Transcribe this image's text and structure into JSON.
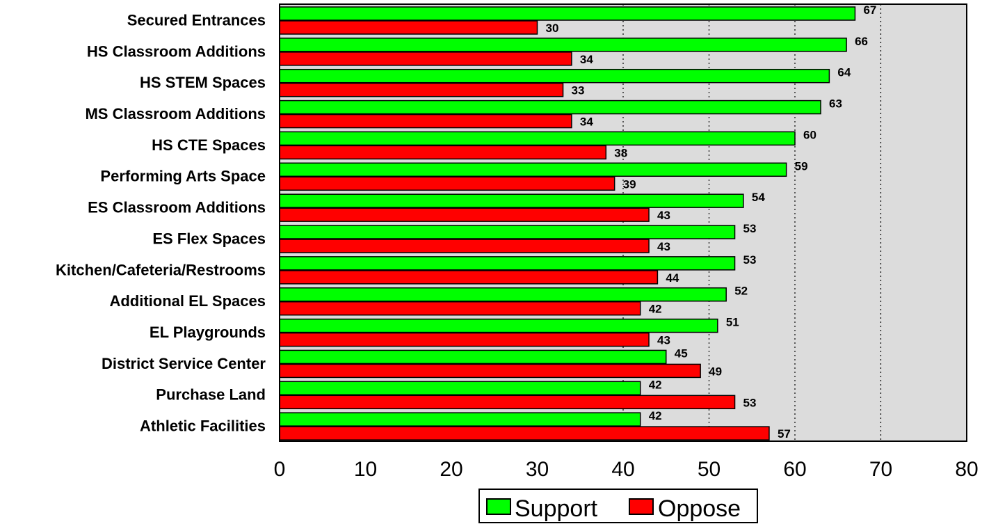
{
  "chart_data": {
    "type": "bar",
    "orientation": "horizontal",
    "categories": [
      "Secured Entrances",
      "HS Classroom Additions",
      "HS STEM Spaces",
      "MS Classroom Additions",
      "HS CTE Spaces",
      "Performing Arts Space",
      "ES Classroom Additions",
      "ES Flex Spaces",
      "Kitchen/Cafeteria/Restrooms",
      "Additional EL Spaces",
      "EL Playgrounds",
      "District Service Center",
      "Purchase Land",
      "Athletic Facilities"
    ],
    "series": [
      {
        "name": "Support",
        "color": "#00ff00",
        "values": [
          67,
          66,
          64,
          63,
          60,
          59,
          54,
          53,
          53,
          52,
          51,
          45,
          42,
          42
        ]
      },
      {
        "name": "Oppose",
        "color": "#ff0000",
        "values": [
          30,
          34,
          33,
          34,
          38,
          39,
          43,
          43,
          44,
          42,
          43,
          49,
          53,
          57
        ]
      }
    ],
    "xlim": [
      0,
      80
    ],
    "x_ticks": [
      0,
      10,
      20,
      30,
      40,
      50,
      60,
      70,
      80
    ],
    "plot_background": "#dcdcdc",
    "gridlines": {
      "values": [
        40,
        50,
        60,
        70
      ],
      "style": "dotted"
    },
    "legend": {
      "placement": "bottom-center",
      "items": [
        "Support",
        "Oppose"
      ]
    },
    "title": "",
    "xlabel": "",
    "ylabel": ""
  }
}
